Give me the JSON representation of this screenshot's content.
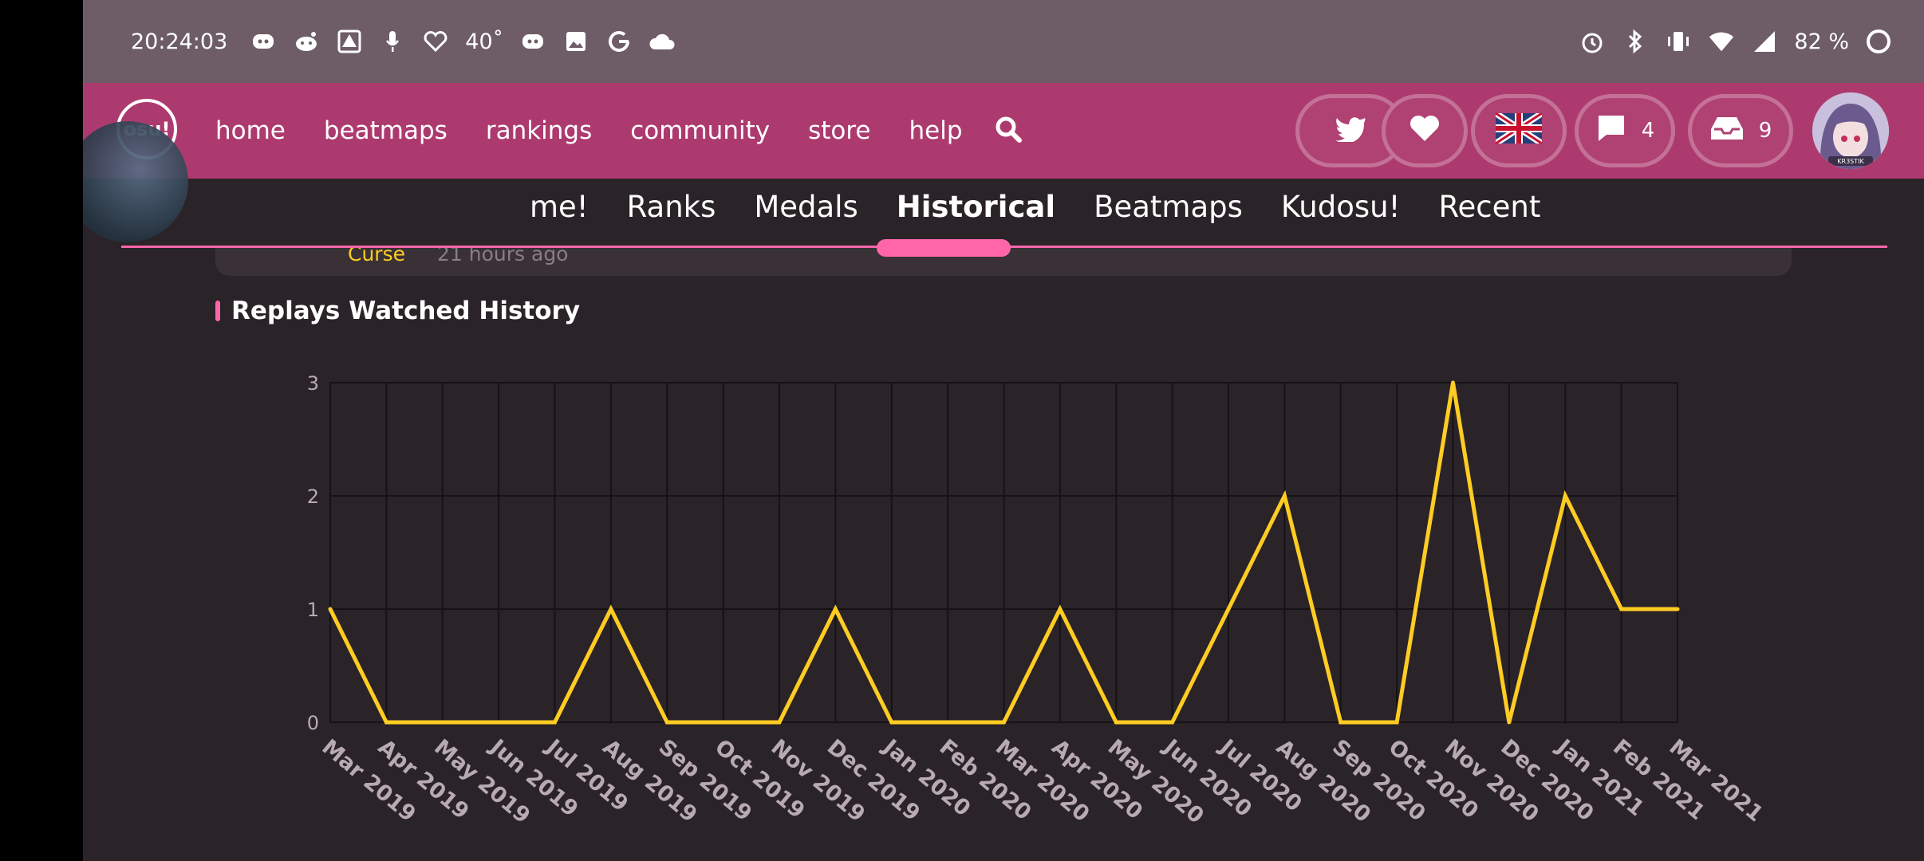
{
  "status_bar": {
    "time": "20:24:03",
    "temperature": "40˚",
    "battery": "82 %"
  },
  "nav": {
    "logo": "osu!",
    "links": [
      "home",
      "beatmaps",
      "rankings",
      "community",
      "store",
      "help"
    ],
    "chat_count": "4",
    "inbox_count": "9",
    "avatar_caption": "KR3STIK"
  },
  "subnav": {
    "tabs": [
      "me!",
      "Ranks",
      "Medals",
      "Historical",
      "Beatmaps",
      "Kudosu!",
      "Recent"
    ],
    "active": "Historical"
  },
  "recent_item": {
    "name": "Curse",
    "time": "21 hours ago"
  },
  "section": {
    "title": "Replays Watched History"
  },
  "colors": {
    "accent": "#ff66aa",
    "line": "#ffcc22",
    "nav": "#ad3a6e",
    "status": "#6e5d66"
  },
  "chart_data": {
    "type": "line",
    "x": [
      "Mar 2019",
      "Apr 2019",
      "May 2019",
      "Jun 2019",
      "Jul 2019",
      "Aug 2019",
      "Sep 2019",
      "Oct 2019",
      "Nov 2019",
      "Dec 2019",
      "Jan 2020",
      "Feb 2020",
      "Mar 2020",
      "Apr 2020",
      "May 2020",
      "Jun 2020",
      "Jul 2020",
      "Aug 2020",
      "Sep 2020",
      "Oct 2020",
      "Nov 2020",
      "Dec 2020",
      "Jan 2021",
      "Feb 2021",
      "Mar 2021"
    ],
    "values": [
      1,
      0,
      0,
      0,
      0,
      1,
      0,
      0,
      0,
      1,
      0,
      0,
      0,
      1,
      0,
      0,
      1,
      2,
      0,
      0,
      3,
      0,
      2,
      1,
      1
    ],
    "yticks": [
      "0",
      "1",
      "2",
      "3"
    ],
    "ylim": [
      0,
      3
    ],
    "grid": true,
    "color": "#ffcc22"
  }
}
